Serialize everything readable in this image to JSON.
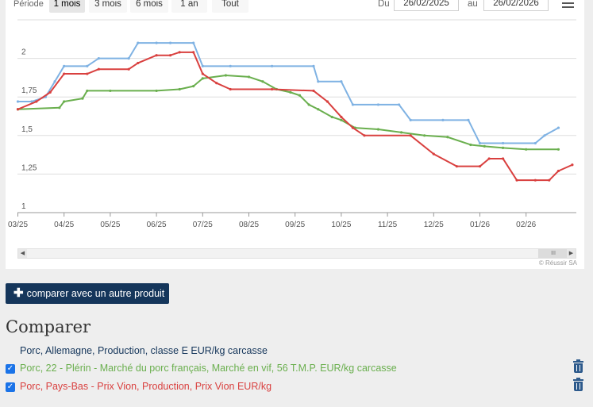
{
  "toolbar": {
    "period_label": "Période",
    "ranges": [
      "1 mois",
      "3 mois",
      "6 mois",
      "1 an",
      "Tout"
    ],
    "selected_range": "1 mois",
    "from_label": "Du",
    "from_date": "26/02/2025",
    "to_label": "au",
    "to_date": "26/02/2026"
  },
  "credit": "© Réussir SA",
  "compare_button": "comparer avec un autre produit",
  "compare_title": "Comparer",
  "products": [
    {
      "label": "Porc, Allemagne, Production, classe E EUR/kg carcasse",
      "color": "#15365b",
      "checkbox": false,
      "deletable": false
    },
    {
      "label": "Porc, 22 - Plérin - Marché du porc français, Marché en vif, 56 T.M.P. EUR/kg carcasse",
      "color": "#6aaf4e",
      "checkbox": true,
      "deletable": true
    },
    {
      "label": "Porc, Pays-Bas - Prix Vion, Production, Prix Vion EUR/kg",
      "color": "#d9403f",
      "checkbox": true,
      "deletable": true
    }
  ],
  "chart_data": {
    "type": "line",
    "x_tick_labels": [
      "03/25",
      "04/25",
      "05/25",
      "06/25",
      "07/25",
      "08/25",
      "09/25",
      "10/25",
      "11/25",
      "12/25",
      "01/26",
      "02/26"
    ],
    "y_tick_labels": [
      "1",
      "1,25",
      "1,5",
      "1,75",
      "2"
    ],
    "ylim": [
      1,
      2.25
    ],
    "grid": true,
    "series": [
      {
        "color": "#7fb2e3",
        "points": [
          [
            0.0,
            1.72
          ],
          [
            0.3,
            1.72
          ],
          [
            0.6,
            1.75
          ],
          [
            0.8,
            1.85
          ],
          [
            1.0,
            1.95
          ],
          [
            1.5,
            1.95
          ],
          [
            1.75,
            2.0
          ],
          [
            2.4,
            2.0
          ],
          [
            2.6,
            2.1
          ],
          [
            3.0,
            2.1
          ],
          [
            3.3,
            2.1
          ],
          [
            3.8,
            2.1
          ],
          [
            4.0,
            1.95
          ],
          [
            4.6,
            1.95
          ],
          [
            5.5,
            1.95
          ],
          [
            6.4,
            1.95
          ],
          [
            6.5,
            1.85
          ],
          [
            7.0,
            1.85
          ],
          [
            7.25,
            1.7
          ],
          [
            7.8,
            1.7
          ],
          [
            8.25,
            1.7
          ],
          [
            8.5,
            1.6
          ],
          [
            9.2,
            1.6
          ],
          [
            9.75,
            1.6
          ],
          [
            10.0,
            1.45
          ],
          [
            10.5,
            1.45
          ],
          [
            11.2,
            1.45
          ],
          [
            11.4,
            1.5
          ],
          [
            11.7,
            1.55
          ]
        ]
      },
      {
        "color": "#6aaf4e",
        "points": [
          [
            0.0,
            1.67
          ],
          [
            0.9,
            1.68
          ],
          [
            1.0,
            1.72
          ],
          [
            1.4,
            1.74
          ],
          [
            1.5,
            1.79
          ],
          [
            2.0,
            1.79
          ],
          [
            3.0,
            1.79
          ],
          [
            3.5,
            1.8
          ],
          [
            3.8,
            1.82
          ],
          [
            4.0,
            1.87
          ],
          [
            4.5,
            1.89
          ],
          [
            5.0,
            1.88
          ],
          [
            5.3,
            1.85
          ],
          [
            5.6,
            1.8
          ],
          [
            5.9,
            1.78
          ],
          [
            6.1,
            1.76
          ],
          [
            6.3,
            1.7
          ],
          [
            6.5,
            1.67
          ],
          [
            6.8,
            1.62
          ],
          [
            7.0,
            1.6
          ],
          [
            7.3,
            1.55
          ],
          [
            7.8,
            1.54
          ],
          [
            8.3,
            1.52
          ],
          [
            8.8,
            1.5
          ],
          [
            9.3,
            1.49
          ],
          [
            9.8,
            1.44
          ],
          [
            10.1,
            1.43
          ],
          [
            10.5,
            1.42
          ],
          [
            11.0,
            1.41
          ],
          [
            11.7,
            1.41
          ]
        ]
      },
      {
        "color": "#d9403f",
        "points": [
          [
            0.0,
            1.67
          ],
          [
            0.4,
            1.72
          ],
          [
            0.7,
            1.78
          ],
          [
            1.0,
            1.9
          ],
          [
            1.5,
            1.9
          ],
          [
            1.75,
            1.93
          ],
          [
            2.4,
            1.93
          ],
          [
            2.6,
            1.97
          ],
          [
            3.0,
            2.02
          ],
          [
            3.3,
            2.02
          ],
          [
            3.5,
            2.04
          ],
          [
            3.8,
            2.04
          ],
          [
            4.0,
            1.9
          ],
          [
            4.3,
            1.84
          ],
          [
            4.6,
            1.8
          ],
          [
            5.5,
            1.8
          ],
          [
            6.4,
            1.79
          ],
          [
            6.7,
            1.72
          ],
          [
            7.0,
            1.62
          ],
          [
            7.25,
            1.55
          ],
          [
            7.5,
            1.5
          ],
          [
            8.5,
            1.5
          ],
          [
            9.0,
            1.38
          ],
          [
            9.5,
            1.3
          ],
          [
            10.0,
            1.3
          ],
          [
            10.2,
            1.35
          ],
          [
            10.5,
            1.35
          ],
          [
            10.8,
            1.21
          ],
          [
            11.2,
            1.21
          ],
          [
            11.5,
            1.21
          ],
          [
            11.7,
            1.27
          ],
          [
            12.0,
            1.31
          ]
        ]
      }
    ]
  }
}
